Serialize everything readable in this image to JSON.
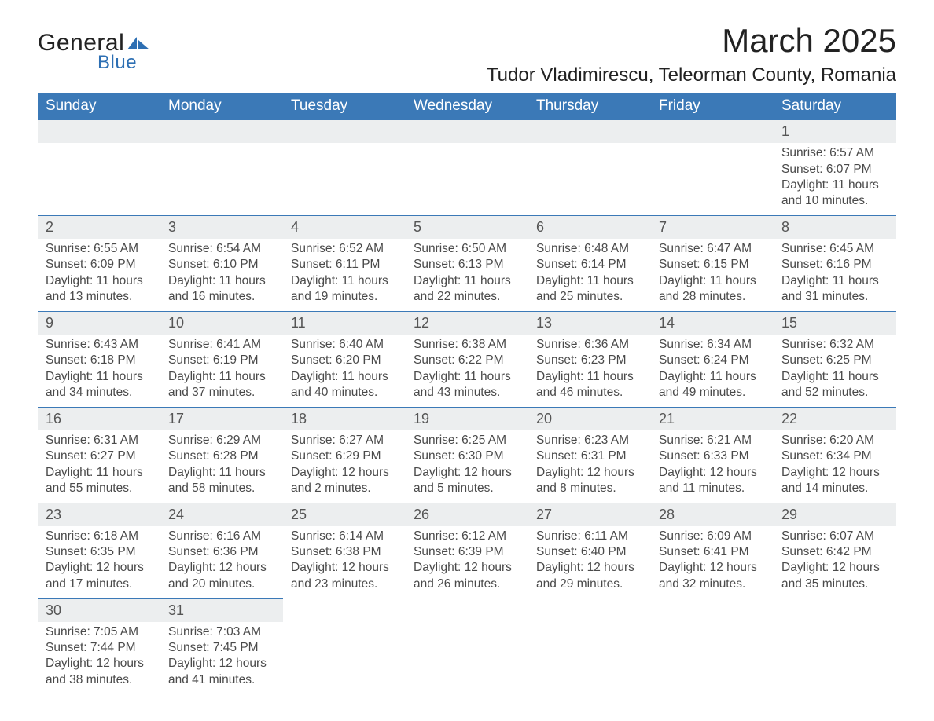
{
  "logo": {
    "text1": "General",
    "text2": "Blue",
    "shape_color": "#2d6fb3"
  },
  "title": "March 2025",
  "location": "Tudor Vladimirescu, Teleorman County, Romania",
  "colors": {
    "header_bg": "#3b79b7",
    "header_text": "#ffffff",
    "row_band": "#eceeef",
    "row_border": "#3b79b7",
    "text": "#4a4a4a"
  },
  "weekdays": [
    "Sunday",
    "Monday",
    "Tuesday",
    "Wednesday",
    "Thursday",
    "Friday",
    "Saturday"
  ],
  "weeks": [
    [
      null,
      null,
      null,
      null,
      null,
      null,
      {
        "n": "1",
        "sr": "Sunrise: 6:57 AM",
        "ss": "Sunset: 6:07 PM",
        "d1": "Daylight: 11 hours",
        "d2": "and 10 minutes."
      }
    ],
    [
      {
        "n": "2",
        "sr": "Sunrise: 6:55 AM",
        "ss": "Sunset: 6:09 PM",
        "d1": "Daylight: 11 hours",
        "d2": "and 13 minutes."
      },
      {
        "n": "3",
        "sr": "Sunrise: 6:54 AM",
        "ss": "Sunset: 6:10 PM",
        "d1": "Daylight: 11 hours",
        "d2": "and 16 minutes."
      },
      {
        "n": "4",
        "sr": "Sunrise: 6:52 AM",
        "ss": "Sunset: 6:11 PM",
        "d1": "Daylight: 11 hours",
        "d2": "and 19 minutes."
      },
      {
        "n": "5",
        "sr": "Sunrise: 6:50 AM",
        "ss": "Sunset: 6:13 PM",
        "d1": "Daylight: 11 hours",
        "d2": "and 22 minutes."
      },
      {
        "n": "6",
        "sr": "Sunrise: 6:48 AM",
        "ss": "Sunset: 6:14 PM",
        "d1": "Daylight: 11 hours",
        "d2": "and 25 minutes."
      },
      {
        "n": "7",
        "sr": "Sunrise: 6:47 AM",
        "ss": "Sunset: 6:15 PM",
        "d1": "Daylight: 11 hours",
        "d2": "and 28 minutes."
      },
      {
        "n": "8",
        "sr": "Sunrise: 6:45 AM",
        "ss": "Sunset: 6:16 PM",
        "d1": "Daylight: 11 hours",
        "d2": "and 31 minutes."
      }
    ],
    [
      {
        "n": "9",
        "sr": "Sunrise: 6:43 AM",
        "ss": "Sunset: 6:18 PM",
        "d1": "Daylight: 11 hours",
        "d2": "and 34 minutes."
      },
      {
        "n": "10",
        "sr": "Sunrise: 6:41 AM",
        "ss": "Sunset: 6:19 PM",
        "d1": "Daylight: 11 hours",
        "d2": "and 37 minutes."
      },
      {
        "n": "11",
        "sr": "Sunrise: 6:40 AM",
        "ss": "Sunset: 6:20 PM",
        "d1": "Daylight: 11 hours",
        "d2": "and 40 minutes."
      },
      {
        "n": "12",
        "sr": "Sunrise: 6:38 AM",
        "ss": "Sunset: 6:22 PM",
        "d1": "Daylight: 11 hours",
        "d2": "and 43 minutes."
      },
      {
        "n": "13",
        "sr": "Sunrise: 6:36 AM",
        "ss": "Sunset: 6:23 PM",
        "d1": "Daylight: 11 hours",
        "d2": "and 46 minutes."
      },
      {
        "n": "14",
        "sr": "Sunrise: 6:34 AM",
        "ss": "Sunset: 6:24 PM",
        "d1": "Daylight: 11 hours",
        "d2": "and 49 minutes."
      },
      {
        "n": "15",
        "sr": "Sunrise: 6:32 AM",
        "ss": "Sunset: 6:25 PM",
        "d1": "Daylight: 11 hours",
        "d2": "and 52 minutes."
      }
    ],
    [
      {
        "n": "16",
        "sr": "Sunrise: 6:31 AM",
        "ss": "Sunset: 6:27 PM",
        "d1": "Daylight: 11 hours",
        "d2": "and 55 minutes."
      },
      {
        "n": "17",
        "sr": "Sunrise: 6:29 AM",
        "ss": "Sunset: 6:28 PM",
        "d1": "Daylight: 11 hours",
        "d2": "and 58 minutes."
      },
      {
        "n": "18",
        "sr": "Sunrise: 6:27 AM",
        "ss": "Sunset: 6:29 PM",
        "d1": "Daylight: 12 hours",
        "d2": "and 2 minutes."
      },
      {
        "n": "19",
        "sr": "Sunrise: 6:25 AM",
        "ss": "Sunset: 6:30 PM",
        "d1": "Daylight: 12 hours",
        "d2": "and 5 minutes."
      },
      {
        "n": "20",
        "sr": "Sunrise: 6:23 AM",
        "ss": "Sunset: 6:31 PM",
        "d1": "Daylight: 12 hours",
        "d2": "and 8 minutes."
      },
      {
        "n": "21",
        "sr": "Sunrise: 6:21 AM",
        "ss": "Sunset: 6:33 PM",
        "d1": "Daylight: 12 hours",
        "d2": "and 11 minutes."
      },
      {
        "n": "22",
        "sr": "Sunrise: 6:20 AM",
        "ss": "Sunset: 6:34 PM",
        "d1": "Daylight: 12 hours",
        "d2": "and 14 minutes."
      }
    ],
    [
      {
        "n": "23",
        "sr": "Sunrise: 6:18 AM",
        "ss": "Sunset: 6:35 PM",
        "d1": "Daylight: 12 hours",
        "d2": "and 17 minutes."
      },
      {
        "n": "24",
        "sr": "Sunrise: 6:16 AM",
        "ss": "Sunset: 6:36 PM",
        "d1": "Daylight: 12 hours",
        "d2": "and 20 minutes."
      },
      {
        "n": "25",
        "sr": "Sunrise: 6:14 AM",
        "ss": "Sunset: 6:38 PM",
        "d1": "Daylight: 12 hours",
        "d2": "and 23 minutes."
      },
      {
        "n": "26",
        "sr": "Sunrise: 6:12 AM",
        "ss": "Sunset: 6:39 PM",
        "d1": "Daylight: 12 hours",
        "d2": "and 26 minutes."
      },
      {
        "n": "27",
        "sr": "Sunrise: 6:11 AM",
        "ss": "Sunset: 6:40 PM",
        "d1": "Daylight: 12 hours",
        "d2": "and 29 minutes."
      },
      {
        "n": "28",
        "sr": "Sunrise: 6:09 AM",
        "ss": "Sunset: 6:41 PM",
        "d1": "Daylight: 12 hours",
        "d2": "and 32 minutes."
      },
      {
        "n": "29",
        "sr": "Sunrise: 6:07 AM",
        "ss": "Sunset: 6:42 PM",
        "d1": "Daylight: 12 hours",
        "d2": "and 35 minutes."
      }
    ],
    [
      {
        "n": "30",
        "sr": "Sunrise: 7:05 AM",
        "ss": "Sunset: 7:44 PM",
        "d1": "Daylight: 12 hours",
        "d2": "and 38 minutes."
      },
      {
        "n": "31",
        "sr": "Sunrise: 7:03 AM",
        "ss": "Sunset: 7:45 PM",
        "d1": "Daylight: 12 hours",
        "d2": "and 41 minutes."
      },
      null,
      null,
      null,
      null,
      null
    ]
  ]
}
